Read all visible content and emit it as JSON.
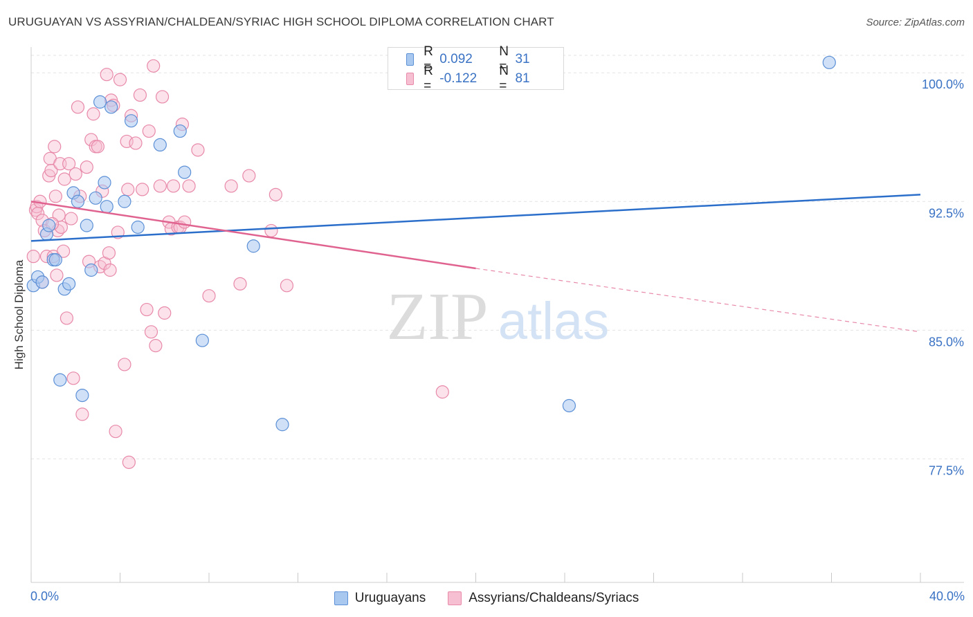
{
  "title": "URUGUAYAN VS ASSYRIAN/CHALDEAN/SYRIAC HIGH SCHOOL DIPLOMA CORRELATION CHART",
  "source": "Source: ZipAtlas.com",
  "watermark": {
    "zip": "ZIP",
    "atlas": "atlas"
  },
  "colors": {
    "blue_fill": "#a9c8f0",
    "blue_stroke": "#5b8fd6",
    "blue_line": "#2b6fcb",
    "pink_fill": "#f6bfd2",
    "pink_stroke": "#e889a8",
    "pink_line": "#e0628f",
    "axis_text": "#3a72c4",
    "grid": "#e3e3e3"
  },
  "legend": {
    "rows": [
      {
        "r_label": "R =",
        "r_value": "0.092",
        "n_label": "N =",
        "n_value": "31"
      },
      {
        "r_label": "R =",
        "r_value": "-0.122",
        "n_label": "N =",
        "n_value": "81"
      }
    ]
  },
  "bottom_legend": [
    "Uruguayans",
    "Assyrians/Chaldeans/Syriacs"
  ],
  "chart_data": {
    "type": "scatter",
    "title": "URUGUAYAN VS ASSYRIAN/CHALDEAN/SYRIAC HIGH SCHOOL DIPLOMA CORRELATION CHART",
    "xlabel": "",
    "ylabel": "High School Diploma",
    "xlim": [
      0,
      40
    ],
    "ylim": [
      70.3,
      101.5
    ],
    "x_tick_labels": [
      "0.0%",
      "40.0%"
    ],
    "y_ticks": [
      77.5,
      85.0,
      92.5,
      100.0
    ],
    "y_tick_labels": [
      "77.5%",
      "85.0%",
      "92.5%",
      "100.0%"
    ],
    "grid": true,
    "series": [
      {
        "name": "Uruguayans",
        "r": 0.092,
        "n": 31,
        "trend": {
          "x0": 0,
          "y0": 90.2,
          "x1": 40,
          "y1": 92.9
        },
        "points": [
          [
            0.1,
            87.6
          ],
          [
            0.3,
            88.1
          ],
          [
            0.5,
            87.8
          ],
          [
            0.7,
            90.6
          ],
          [
            0.8,
            91.1
          ],
          [
            1.0,
            89.1
          ],
          [
            1.1,
            89.1
          ],
          [
            1.3,
            82.1
          ],
          [
            1.5,
            87.4
          ],
          [
            1.7,
            87.7
          ],
          [
            1.9,
            93.0
          ],
          [
            2.1,
            92.5
          ],
          [
            2.3,
            81.2
          ],
          [
            2.5,
            91.1
          ],
          [
            2.7,
            88.5
          ],
          [
            2.9,
            92.7
          ],
          [
            3.1,
            98.3
          ],
          [
            3.3,
            93.6
          ],
          [
            3.4,
            92.2
          ],
          [
            3.6,
            98.0
          ],
          [
            4.2,
            92.5
          ],
          [
            4.5,
            97.2
          ],
          [
            4.8,
            91.0
          ],
          [
            5.8,
            95.8
          ],
          [
            6.7,
            96.6
          ],
          [
            6.9,
            94.2
          ],
          [
            7.7,
            84.4
          ],
          [
            10.0,
            89.9
          ],
          [
            11.3,
            79.5
          ],
          [
            24.2,
            80.6
          ],
          [
            35.9,
            100.6
          ]
        ]
      },
      {
        "name": "Assyrians/Chaldeans/Syriacs",
        "r": -0.122,
        "n": 81,
        "trend": {
          "x0": 0,
          "y0": 92.5,
          "x1": 20,
          "y1": 88.6
        },
        "trend_dashed": {
          "x0": 20,
          "y0": 88.6,
          "x1": 40,
          "y1": 84.9
        },
        "points": [
          [
            0.1,
            89.3
          ],
          [
            0.2,
            92.0
          ],
          [
            0.25,
            92.2
          ],
          [
            0.3,
            91.8
          ],
          [
            0.5,
            91.4
          ],
          [
            0.5,
            87.8
          ],
          [
            0.6,
            90.8
          ],
          [
            0.7,
            89.3
          ],
          [
            0.8,
            94.0
          ],
          [
            0.85,
            95.0
          ],
          [
            0.9,
            94.3
          ],
          [
            1.0,
            89.3
          ],
          [
            1.05,
            95.7
          ],
          [
            1.1,
            92.8
          ],
          [
            1.15,
            88.2
          ],
          [
            1.2,
            90.8
          ],
          [
            1.3,
            94.7
          ],
          [
            1.35,
            91.0
          ],
          [
            1.5,
            93.8
          ],
          [
            1.6,
            85.7
          ],
          [
            1.7,
            94.7
          ],
          [
            1.8,
            91.5
          ],
          [
            1.9,
            82.2
          ],
          [
            2.0,
            94.1
          ],
          [
            2.1,
            98.0
          ],
          [
            2.2,
            92.8
          ],
          [
            2.3,
            80.1
          ],
          [
            2.5,
            94.5
          ],
          [
            2.7,
            96.1
          ],
          [
            2.8,
            97.6
          ],
          [
            2.9,
            95.7
          ],
          [
            3.0,
            95.7
          ],
          [
            3.1,
            88.7
          ],
          [
            3.2,
            93.1
          ],
          [
            3.3,
            88.9
          ],
          [
            3.4,
            99.9
          ],
          [
            3.5,
            89.5
          ],
          [
            3.6,
            98.4
          ],
          [
            3.7,
            98.1
          ],
          [
            3.8,
            79.1
          ],
          [
            3.9,
            90.7
          ],
          [
            4.0,
            99.6
          ],
          [
            4.2,
            83.0
          ],
          [
            4.3,
            96.0
          ],
          [
            4.35,
            93.2
          ],
          [
            4.4,
            77.3
          ],
          [
            4.5,
            97.5
          ],
          [
            4.7,
            95.9
          ],
          [
            4.9,
            98.7
          ],
          [
            5.0,
            93.2
          ],
          [
            5.2,
            86.2
          ],
          [
            5.3,
            96.6
          ],
          [
            5.4,
            84.9
          ],
          [
            5.5,
            100.4
          ],
          [
            5.6,
            84.1
          ],
          [
            5.8,
            93.4
          ],
          [
            5.9,
            98.6
          ],
          [
            6.0,
            86.0
          ],
          [
            6.2,
            91.3
          ],
          [
            6.3,
            90.9
          ],
          [
            6.4,
            93.4
          ],
          [
            6.6,
            91.0
          ],
          [
            6.7,
            91.0
          ],
          [
            6.8,
            97.0
          ],
          [
            6.9,
            91.3
          ],
          [
            7.1,
            93.4
          ],
          [
            7.5,
            95.5
          ],
          [
            8.0,
            87.0
          ],
          [
            9.0,
            93.4
          ],
          [
            9.4,
            87.7
          ],
          [
            9.8,
            94.0
          ],
          [
            10.8,
            90.8
          ],
          [
            11.0,
            92.9
          ],
          [
            11.5,
            87.6
          ],
          [
            18.5,
            81.4
          ],
          [
            0.4,
            92.5
          ],
          [
            1.45,
            89.6
          ],
          [
            2.6,
            89.0
          ],
          [
            3.55,
            88.5
          ],
          [
            1.25,
            91.7
          ],
          [
            0.95,
            91.2
          ]
        ]
      }
    ]
  }
}
